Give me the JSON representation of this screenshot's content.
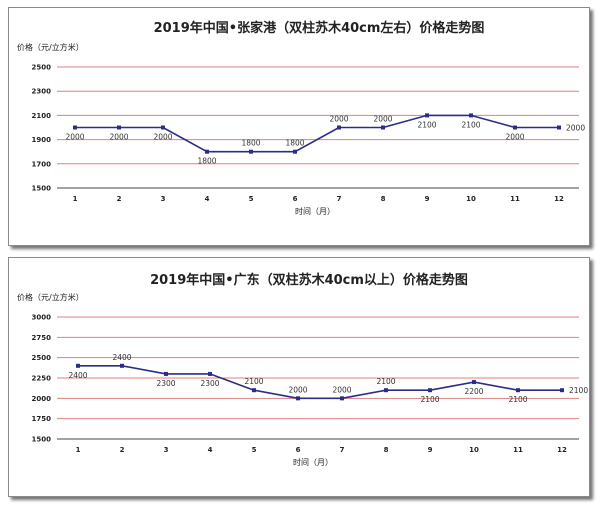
{
  "chart_data": [
    {
      "type": "line",
      "title": "2019年中国•张家港（双柱苏木40cm左右）价格走势图",
      "ylabel": "价格（元/立方米）",
      "xlabel": "时间（月）",
      "categories": [
        "1",
        "2",
        "3",
        "4",
        "5",
        "6",
        "7",
        "8",
        "9",
        "10",
        "11",
        "12"
      ],
      "values": [
        2000,
        2000,
        2000,
        1800,
        1800,
        1800,
        2000,
        2000,
        2100,
        2100,
        2000,
        2000
      ],
      "labels": [
        "2000",
        "2000",
        "2000",
        "1800",
        "1800",
        "1800",
        "2000",
        "2000",
        "2100",
        "2100",
        "2000",
        "2000"
      ],
      "label_pos": [
        "below",
        "below",
        "below",
        "below",
        "above",
        "above",
        "above",
        "above",
        "below",
        "below",
        "below",
        "right"
      ],
      "yticks": [
        "1500",
        "1700",
        "1900",
        "2100",
        "2300",
        "2500"
      ],
      "ylim": [
        1500,
        2500
      ],
      "grid": true,
      "line_color": "#2b2d86",
      "grid_color": "#e08080"
    },
    {
      "type": "line",
      "title": "2019年中国•广东（双柱苏木40cm以上）价格走势图",
      "ylabel": "价格（元/立方米）",
      "xlabel": "时间（月）",
      "categories": [
        "1",
        "2",
        "3",
        "4",
        "5",
        "6",
        "7",
        "8",
        "9",
        "10",
        "11",
        "12"
      ],
      "values": [
        2400,
        2400,
        2300,
        2300,
        2100,
        2000,
        2000,
        2100,
        2100,
        2200,
        2100,
        2100
      ],
      "labels": [
        "2400",
        "2400",
        "2300",
        "2300",
        "2100",
        "2000",
        "2000",
        "2100",
        "2100",
        "2200",
        "2100",
        "2100"
      ],
      "label_pos": [
        "below",
        "above",
        "below",
        "below",
        "above",
        "above",
        "above",
        "above",
        "below",
        "below",
        "below",
        "right"
      ],
      "yticks": [
        "1500",
        "1750",
        "2000",
        "2250",
        "2500",
        "2750",
        "3000"
      ],
      "ylim": [
        1500,
        3000
      ],
      "grid": true,
      "line_color": "#2b2d86",
      "grid_color": "#e08080"
    }
  ]
}
